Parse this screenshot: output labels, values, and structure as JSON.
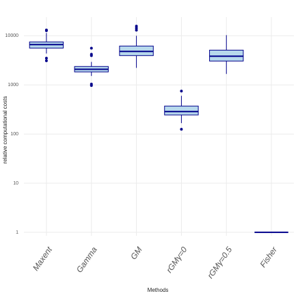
{
  "chart_data": {
    "type": "box",
    "y_label": "relative computational costs",
    "x_label": "Methods",
    "categories": [
      "Maxent",
      "Gamma",
      "GM",
      "rGMγ=0",
      "rGMγ=0.5",
      "Fisher"
    ],
    "boxes": [
      {
        "min": 4350,
        "q1": 5620,
        "median": 6600,
        "q3": 7500,
        "max": 11400,
        "outliers": [
          12700,
          13100,
          3500,
          3100
        ]
      },
      {
        "min": 1520,
        "q1": 1840,
        "median": 2080,
        "q3": 2370,
        "max": 2940,
        "outliers": [
          5600,
          4200,
          3950,
          1040,
          970
        ]
      },
      {
        "min": 2220,
        "q1": 3950,
        "median": 4800,
        "q3": 6180,
        "max": 10000,
        "outliers": [
          15700,
          14300,
          13000
        ]
      },
      {
        "min": 167,
        "q1": 245,
        "median": 287,
        "q3": 371,
        "max": 600,
        "outliers": [
          750,
          125
        ]
      },
      {
        "min": 1670,
        "q1": 3060,
        "median": 3830,
        "q3": 5100,
        "max": 10300,
        "outliers": []
      },
      {
        "min": 1,
        "q1": 1,
        "median": 1,
        "q3": 1,
        "max": 1,
        "outliers": []
      }
    ],
    "fill": "#b7d9ec",
    "color": "#00008b",
    "log_y": true,
    "ylim": [
      0.85,
      24000
    ],
    "yticks": [
      1,
      10,
      100,
      1000,
      10000
    ],
    "grid": true
  }
}
